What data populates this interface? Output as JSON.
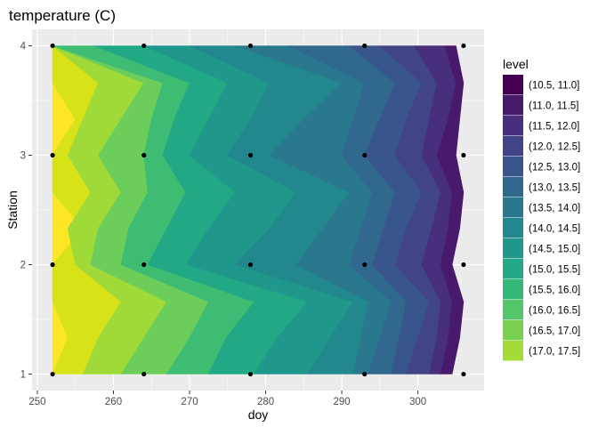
{
  "chart_data": {
    "type": "contour",
    "title": "temperature (C)",
    "xlabel": "doy",
    "ylabel": "Station",
    "xlim": [
      249.3,
      308.7
    ],
    "ylim": [
      0.85,
      4.15
    ],
    "x_ticks": [
      250,
      260,
      270,
      280,
      290,
      300
    ],
    "y_ticks": [
      1,
      2,
      3,
      4
    ],
    "grid": true,
    "legend_position": "right",
    "legend_title": "level",
    "levels": [
      {
        "label": "(10.5, 11.0]",
        "color": "#440154"
      },
      {
        "label": "(11.0, 11.5]",
        "color": "#481a6c"
      },
      {
        "label": "(11.5, 12.0]",
        "color": "#472f7d"
      },
      {
        "label": "(12.0, 12.5]",
        "color": "#414487"
      },
      {
        "label": "(12.5, 13.0]",
        "color": "#39568c"
      },
      {
        "label": "(13.0, 13.5]",
        "color": "#31688e"
      },
      {
        "label": "(13.5, 14.0]",
        "color": "#2a788e"
      },
      {
        "label": "(14.0, 14.5]",
        "color": "#23888e"
      },
      {
        "label": "(14.5, 15.0]",
        "color": "#1f988b"
      },
      {
        "label": "(15.0, 15.5]",
        "color": "#22a884"
      },
      {
        "label": "(15.5, 16.0]",
        "color": "#35b779"
      },
      {
        "label": "(16.0, 16.5]",
        "color": "#54c568"
      },
      {
        "label": "(16.5, 17.0]",
        "color": "#7ad151"
      },
      {
        "label": "(17.0, 17.5]",
        "color": "#a5db36"
      }
    ],
    "band_colors_note_free": true,
    "bands": [
      {
        "level": "(17.0, 17.5]",
        "color": "#fde725",
        "x": [
          [
            252.0,
            254.0,
            252.0
          ],
          [
            252.0,
            256.0,
            252.0
          ],
          [
            252.0,
            255.0,
            252.0
          ],
          [
            252.0,
            252.0,
            252.0
          ]
        ]
      },
      {
        "level": "(16.5, 17.0]",
        "color": "#d8e219",
        "x": [
          [
            256.0,
            258.0,
            261.0
          ],
          [
            255.0,
            254.0,
            257.0
          ],
          [
            254.0,
            256.0,
            258.0
          ],
          [
            252.0,
            252.0,
            252.0
          ]
        ]
      },
      {
        "level": "(16.0, 16.5]",
        "color": "#a0da39",
        "x": [
          [
            261.0,
            264.0,
            267.0
          ],
          [
            257.0,
            258.0,
            261.0
          ],
          [
            258.0,
            261.0,
            264.0
          ],
          [
            252.0,
            252.0,
            252.0
          ]
        ]
      },
      {
        "level": "(15.5, 16.0]",
        "color": "#6ccd5a",
        "x": [
          [
            267.0,
            270.0,
            272.5
          ],
          [
            261.0,
            262.0,
            264.5
          ],
          [
            264.0,
            265.0,
            266.5
          ],
          [
            252.0,
            254.5,
            257.5
          ]
        ]
      },
      {
        "level": "(15.0, 15.5]",
        "color": "#3fbc73",
        "x": [
          [
            272.5,
            274.8,
            278.5
          ],
          [
            264.5,
            267.0,
            269.5
          ],
          [
            266.5,
            268.0,
            270.0
          ],
          [
            257.5,
            261.5,
            264.0
          ]
        ]
      },
      {
        "level": "(14.5, 15.0]",
        "color": "#22a884",
        "x": [
          [
            278.5,
            281.5,
            285.5
          ],
          [
            269.5,
            272.5,
            276.0
          ],
          [
            270.0,
            272.5,
            275.0
          ],
          [
            264.0,
            267.2,
            270.0
          ]
        ]
      },
      {
        "level": "(14.0, 14.5]",
        "color": "#1f988b",
        "x": [
          [
            285.5,
            288.5,
            291.5
          ],
          [
            276.0,
            280.5,
            284.0
          ],
          [
            275.0,
            278.0,
            280.5
          ],
          [
            270.0,
            272.8,
            276.0
          ]
        ]
      },
      {
        "level": "(13.5, 14.0]",
        "color": "#23888e",
        "x": [
          [
            291.5,
            292.5,
            293.5
          ],
          [
            284.0,
            287.5,
            291.0
          ],
          [
            280.5,
            285.0,
            290.0
          ],
          [
            276.0,
            278.5,
            283.0
          ]
        ]
      },
      {
        "level": "(13.0, 13.5]",
        "color": "#2a788e",
        "x": [
          [
            293.5,
            295.0,
            296.5
          ],
          [
            291.0,
            292.5,
            294.0
          ],
          [
            290.0,
            291.5,
            293.0
          ],
          [
            283.0,
            286.5,
            291.0
          ]
        ]
      },
      {
        "level": "(12.5, 13.0]",
        "color": "#31688e",
        "x": [
          [
            296.5,
            297.5,
            298.5
          ],
          [
            294.0,
            295.5,
            297.0
          ],
          [
            293.0,
            295.0,
            297.0
          ],
          [
            291.0,
            293.5,
            295.0
          ]
        ]
      },
      {
        "level": "(12.0, 12.5]",
        "color": "#39568c",
        "x": [
          [
            298.5,
            300.0,
            301.5
          ],
          [
            297.0,
            298.5,
            300.5
          ],
          [
            297.0,
            298.5,
            300.5
          ],
          [
            295.0,
            297.5,
            299.5
          ]
        ]
      },
      {
        "level": "(11.5, 12.0]",
        "color": "#414487",
        "x": [
          [
            301.5,
            302.5,
            303.0
          ],
          [
            300.5,
            301.8,
            303.0
          ],
          [
            300.5,
            301.5,
            302.5
          ],
          [
            299.5,
            302.0,
            303.5
          ]
        ]
      },
      {
        "level": "(11.0, 11.5]",
        "color": "#472f7d",
        "x": [
          [
            303.0,
            304.0,
            304.5
          ],
          [
            303.0,
            304.0,
            304.5
          ],
          [
            302.5,
            304.0,
            305.0
          ],
          [
            303.5,
            304.0,
            305.0
          ]
        ]
      },
      {
        "level": "(10.5, 11.0]",
        "color": "#481a6c",
        "x": [
          [
            304.5,
            305.5,
            306.0
          ],
          [
            304.5,
            305.5,
            306.0
          ],
          [
            305.0,
            305.5,
            306.0
          ],
          [
            305.0,
            306.0,
            306.0
          ]
        ]
      }
    ],
    "points": [
      {
        "x": 252,
        "y": 1
      },
      {
        "x": 264,
        "y": 1
      },
      {
        "x": 278,
        "y": 1
      },
      {
        "x": 293,
        "y": 1
      },
      {
        "x": 306,
        "y": 1
      },
      {
        "x": 252,
        "y": 2
      },
      {
        "x": 264,
        "y": 2
      },
      {
        "x": 278,
        "y": 2
      },
      {
        "x": 293,
        "y": 2
      },
      {
        "x": 306,
        "y": 2
      },
      {
        "x": 252,
        "y": 3
      },
      {
        "x": 264,
        "y": 3
      },
      {
        "x": 278,
        "y": 3
      },
      {
        "x": 293,
        "y": 3
      },
      {
        "x": 306,
        "y": 3
      },
      {
        "x": 252,
        "y": 4
      },
      {
        "x": 264,
        "y": 4
      },
      {
        "x": 278,
        "y": 4
      },
      {
        "x": 293,
        "y": 4
      },
      {
        "x": 306,
        "y": 4
      }
    ]
  }
}
